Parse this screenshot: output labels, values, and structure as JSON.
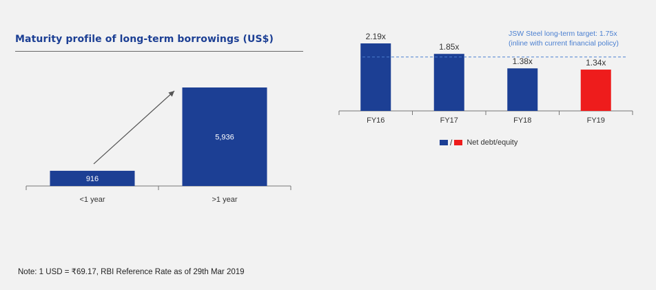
{
  "chart_data": [
    {
      "type": "bar",
      "title": "Maturity profile of long-term borrowings (US$)",
      "categories": [
        "<1 year",
        ">1 year"
      ],
      "values": [
        916,
        5936
      ],
      "value_labels": [
        "916",
        "5,936"
      ],
      "annotation": "arrow indicating increase from <1 year to >1 year",
      "colors": {
        "bar": "#1c3f94",
        "bar_label": "#ffffff"
      },
      "ylim": [
        0,
        6000
      ],
      "grid": false
    },
    {
      "type": "bar",
      "categories": [
        "FY16",
        "FY17",
        "FY18",
        "FY19"
      ],
      "values": [
        2.19,
        1.85,
        1.38,
        1.34
      ],
      "value_labels": [
        "2.19x",
        "1.85x",
        "1.38x",
        "1.34x"
      ],
      "bar_colors": [
        "#1c3f94",
        "#1c3f94",
        "#1c3f94",
        "#ee1c1c"
      ],
      "target_line": {
        "value": 1.75,
        "label_line1": "JSW Steel long-term target: 1.75x",
        "label_line2": "(inline with current financial policy)",
        "color": "#4a7fd0"
      },
      "legend": {
        "label": "Net debt/equity",
        "separator": "/",
        "colors": [
          "#1c3f94",
          "#ee1c1c"
        ],
        "placement": "bottom"
      },
      "ylim": [
        0,
        2.2
      ],
      "grid": false
    }
  ],
  "note": "Note: 1 USD = ₹69.17, RBI Reference Rate as of 29th Mar 2019"
}
